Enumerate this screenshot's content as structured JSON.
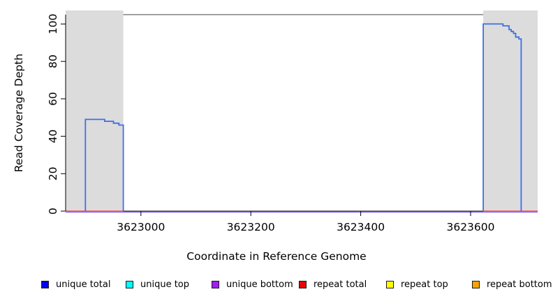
{
  "figure": {
    "x_axis_title": "Coordinate in Reference Genome",
    "y_axis_title": "Read Coverage Depth"
  },
  "legend": {
    "items": [
      {
        "label": "unique total",
        "color": "#0000EE"
      },
      {
        "label": "unique top",
        "color": "#00FFFF"
      },
      {
        "label": "unique bottom",
        "color": "#A020F0"
      },
      {
        "label": "repeat total",
        "color": "#EE0000"
      },
      {
        "label": "repeat top",
        "color": "#FFFF00"
      },
      {
        "label": "repeat bottom",
        "color": "#F5A400"
      }
    ]
  },
  "chart_data": {
    "type": "line",
    "title": "",
    "xlabel": "Coordinate in Reference Genome",
    "ylabel": "Read Coverage Depth",
    "x_range": [
      3622863,
      3623722
    ],
    "y_range": [
      0,
      105
    ],
    "x_ticks": [
      3623000,
      3623200,
      3623400,
      3623600
    ],
    "y_ticks": [
      0,
      20,
      40,
      60,
      80,
      100
    ],
    "grid": "off",
    "legend_position": "bottom",
    "shaded_regions": [
      {
        "name": "repeat-region-left",
        "x_start": 3622863,
        "x_end": 3622968,
        "color": "#DCDCDC"
      },
      {
        "name": "repeat-region-right",
        "x_start": 3623623,
        "x_end": 3623722,
        "color": "#DCDCDC"
      }
    ],
    "top_boundary_line": {
      "y": 105,
      "color": "#818181"
    },
    "baseline": {
      "name": "unique bottom / zero baseline",
      "y": 0,
      "color": "#8B68EE",
      "x_start": 3622863,
      "x_end": 3623722
    },
    "repeat_total": {
      "name": "repeat total",
      "color": "#F34A52",
      "y": 0,
      "segments": [
        [
          3622863,
          3622968
        ],
        [
          3623623,
          3623722
        ]
      ]
    },
    "series": [
      {
        "name": "unique total (left hump)",
        "color": "#3D6FE8",
        "points": [
          [
            3622899,
            0
          ],
          [
            3622899,
            49
          ],
          [
            3622934,
            49
          ],
          [
            3622934,
            48
          ],
          [
            3622950,
            48
          ],
          [
            3622950,
            47
          ],
          [
            3622960,
            47
          ],
          [
            3622960,
            46
          ],
          [
            3622968,
            46
          ],
          [
            3622968,
            0
          ]
        ]
      },
      {
        "name": "unique total (right hump)",
        "color": "#3D6FE8",
        "points": [
          [
            3623623,
            0
          ],
          [
            3623623,
            100
          ],
          [
            3623659,
            100
          ],
          [
            3623659,
            99
          ],
          [
            3623670,
            99
          ],
          [
            3623670,
            97
          ],
          [
            3623674,
            97
          ],
          [
            3623674,
            96
          ],
          [
            3623678,
            96
          ],
          [
            3623678,
            95
          ],
          [
            3623682,
            95
          ],
          [
            3623682,
            93
          ],
          [
            3623688,
            93
          ],
          [
            3623688,
            92
          ],
          [
            3623692,
            92
          ],
          [
            3623692,
            0
          ]
        ]
      }
    ]
  }
}
